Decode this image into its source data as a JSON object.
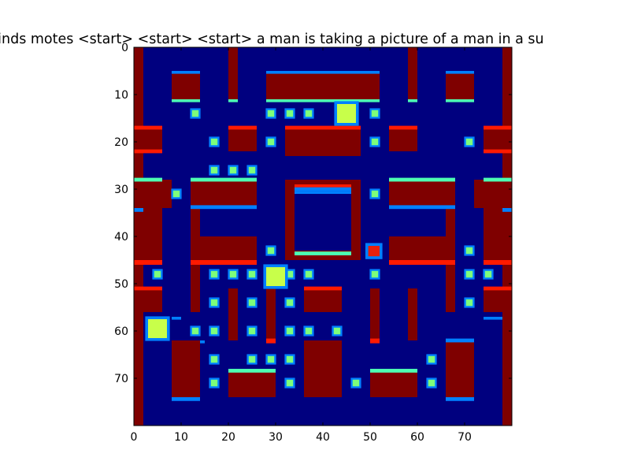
{
  "title": "kinds motes <start> <start> <start> a man is taking a picture of a man in a su",
  "chart_data": {
    "type": "heatmap",
    "title": "kinds motes <start> <start> <start> a man is taking a picture of a man in a su",
    "xlabel": "",
    "ylabel": "",
    "xlim": [
      0,
      80
    ],
    "ylim": [
      80,
      0
    ],
    "x_ticks": [
      "0",
      "10",
      "20",
      "30",
      "40",
      "50",
      "60",
      "70"
    ],
    "y_ticks": [
      "0",
      "10",
      "20",
      "30",
      "40",
      "50",
      "60",
      "70"
    ],
    "colormap": "jet",
    "colors": {
      "background": "#00007f",
      "wall": "#7f0000",
      "wall_edge_top": "#0080ff",
      "wall_edge_bottom": "#4dffb2",
      "wall_edge_red": "#ff1a00",
      "pellet": "#7dff7a",
      "pacman": "#c8ff4a",
      "ghost": "#e8200a"
    }
  }
}
